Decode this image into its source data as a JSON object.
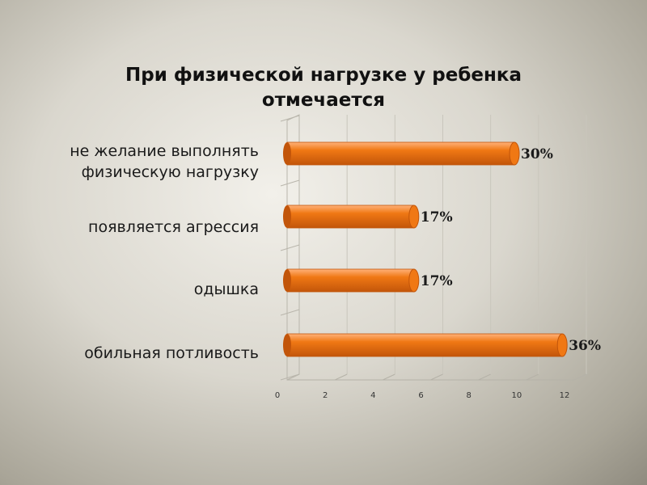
{
  "chart_data": {
    "type": "bar",
    "orientation": "horizontal",
    "title": "При физической нагрузке у ребенка отмечается",
    "categories": [
      "не желание выполнять физическую нагрузку",
      "появляется агрессия",
      "одышка",
      "обильная потливость"
    ],
    "values": [
      9.5,
      5.3,
      5.3,
      11.5
    ],
    "data_labels": [
      "30%",
      "17%",
      "17%",
      "36%"
    ],
    "xlim": [
      0,
      12
    ],
    "x_ticks": [
      "0",
      "2",
      "4",
      "6",
      "8",
      "10",
      "12"
    ],
    "grid": true,
    "legend": "none",
    "bar_color": "#f07814",
    "bar_dark": "#c2550a",
    "bar_light": "#ffb27a"
  }
}
